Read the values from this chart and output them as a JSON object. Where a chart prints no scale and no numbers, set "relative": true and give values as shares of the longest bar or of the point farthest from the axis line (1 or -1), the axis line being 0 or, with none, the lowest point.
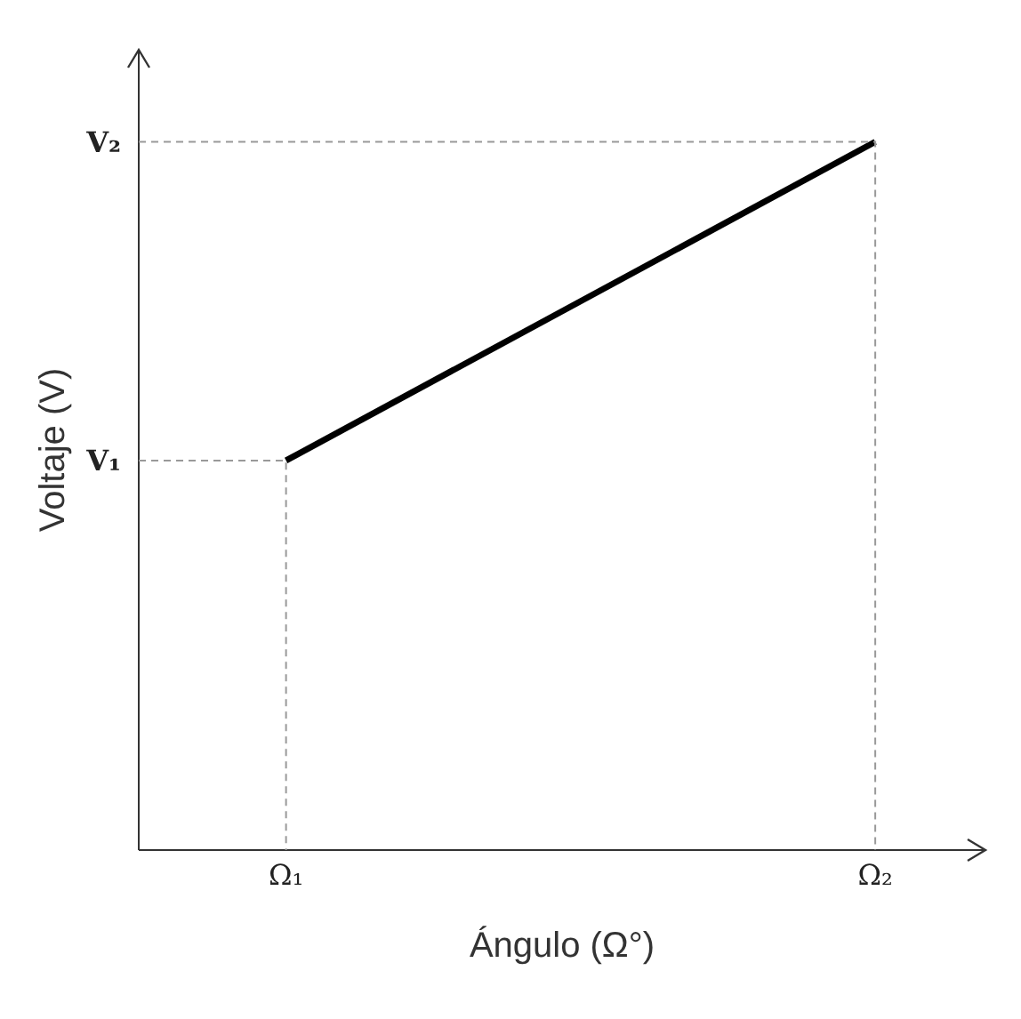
{
  "chart_data": {
    "type": "line",
    "xlabel": "Ángulo (Ω°)",
    "ylabel": "Voltaje (V)",
    "relative": true,
    "categories": [
      "Ω₁",
      "Ω₂"
    ],
    "series": [
      {
        "color": "#000000",
        "values": [
          0.55,
          1
        ]
      }
    ],
    "annotations": [
      "V₁",
      "V₂"
    ],
    "marker": "none",
    "line_style": "solid"
  }
}
